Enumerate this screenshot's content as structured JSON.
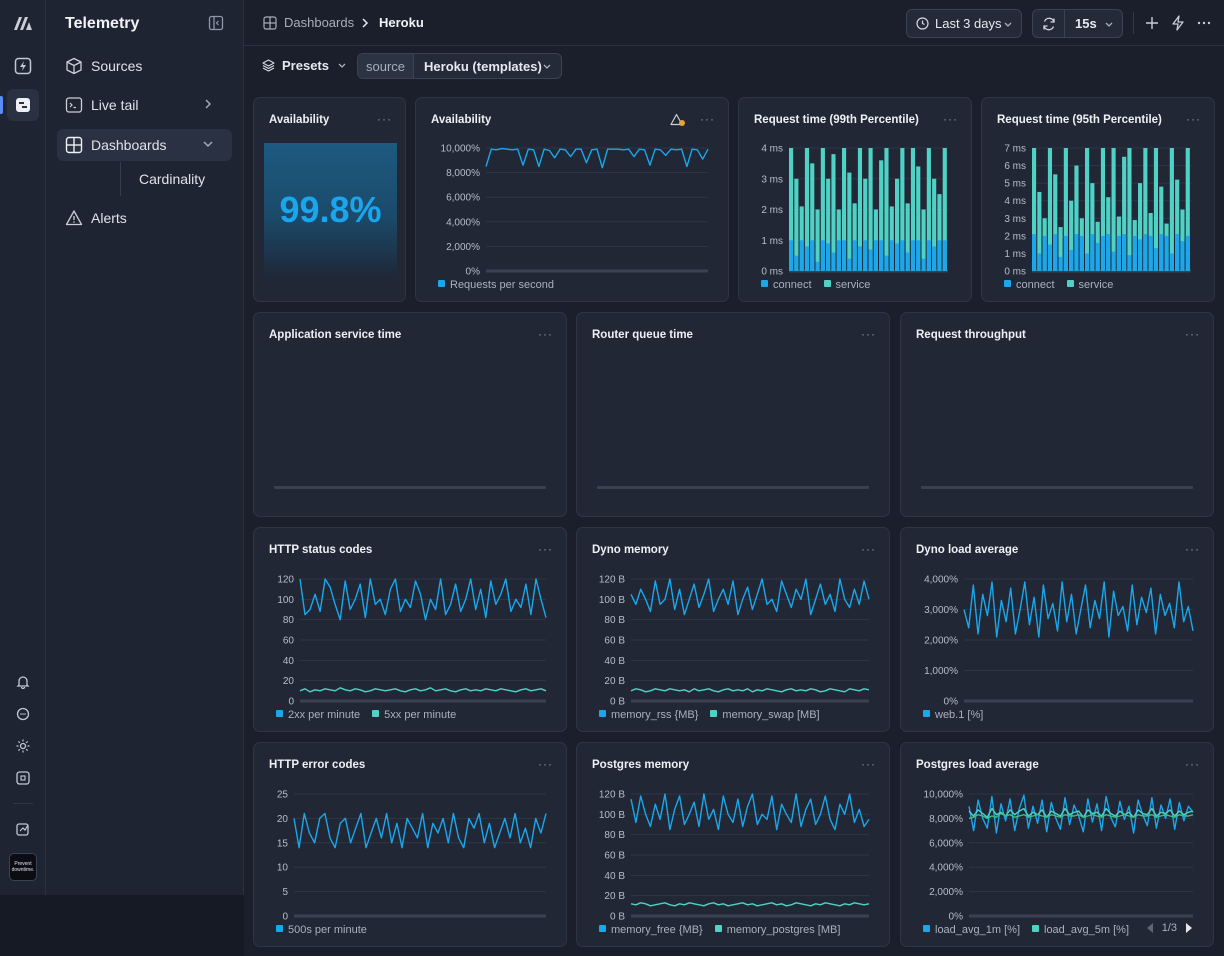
{
  "app": {
    "title": "Telemetry"
  },
  "rail": {
    "icons": [
      "logo-icon",
      "bolt-icon",
      "dashboard-icon",
      "bell-icon",
      "chat-icon",
      "sun-icon",
      "command-icon",
      "import-icon",
      "avatar"
    ],
    "avatar_text": "Prevent downtime."
  },
  "sidebar": {
    "items": [
      {
        "label": "Sources",
        "icon": "cube-icon"
      },
      {
        "label": "Live tail",
        "icon": "terminal-icon"
      },
      {
        "label": "Dashboards",
        "icon": "grid-icon"
      },
      {
        "label": "Cardinality",
        "icon": ""
      },
      {
        "label": "Alerts",
        "icon": "warning-icon"
      }
    ]
  },
  "topbar": {
    "breadcrumb": [
      "Dashboards",
      "Heroku"
    ],
    "time_range": "Last 3 days",
    "refresh": "15s"
  },
  "filters": {
    "presets": "Presets",
    "source_label": "source",
    "source_value": "Heroku (templates)"
  },
  "panels": {
    "availability_stat": {
      "title": "Availability",
      "value": "99.8%"
    },
    "pagination": "1/3"
  },
  "colors": {
    "primary": "#1aa7ec",
    "secondary": "#4fd1c5",
    "tertiary": "#3fbf7f"
  },
  "chart_data": [
    {
      "id": "availability",
      "type": "line",
      "title": "Availability",
      "y_ticks": [
        "10,000%",
        "8,000%",
        "6,000%",
        "4,000%",
        "2,000%",
        "0%"
      ],
      "ylim": [
        0,
        10000
      ],
      "series": [
        {
          "name": "Requests per second",
          "values": [
            8500,
            9900,
            9850,
            9950,
            9900,
            9850,
            9900,
            8600,
            9900,
            9850,
            8500,
            9900,
            9800,
            9200,
            9900,
            9850,
            9300,
            9900,
            9900,
            8800,
            9850,
            9900,
            8400,
            9900,
            9900,
            9900,
            9850,
            9900,
            9300,
            9900,
            9850,
            8600,
            9900,
            9850,
            9400,
            9900,
            9850,
            9900,
            8500,
            9900,
            9850,
            9100,
            9900
          ]
        }
      ]
    },
    {
      "id": "req99",
      "type": "area",
      "title": "Request time (99th Percentile)",
      "y_ticks": [
        "4 ms",
        "3 ms",
        "2 ms",
        "1 ms",
        "0 ms"
      ],
      "ylim": [
        0,
        4
      ],
      "series": [
        {
          "name": "connect",
          "values": [
            1.0,
            0.5,
            1.0,
            0.8,
            1.0,
            0.3,
            1.0,
            0.9,
            0.6,
            1.0,
            1.0,
            0.4,
            1.0,
            0.8,
            1.0,
            0.7,
            1.0,
            1.0,
            0.5,
            1.0,
            0.9,
            1.0,
            0.6,
            1.0,
            1.0,
            0.4,
            1.0,
            0.8,
            1.0,
            1.0
          ]
        },
        {
          "name": "service",
          "values": [
            4.0,
            3.0,
            2.1,
            4.0,
            3.5,
            2.0,
            4.0,
            3.0,
            3.8,
            2.0,
            4.0,
            3.2,
            2.2,
            4.0,
            3.0,
            4.0,
            2.0,
            3.6,
            4.0,
            2.1,
            3.0,
            4.0,
            2.2,
            4.0,
            3.4,
            2.0,
            4.0,
            3.0,
            2.5,
            4.0
          ]
        }
      ]
    },
    {
      "id": "req95",
      "type": "area",
      "title": "Request time (95th Percentile)",
      "y_ticks": [
        "7 ms",
        "6 ms",
        "5 ms",
        "4 ms",
        "3 ms",
        "2 ms",
        "1 ms",
        "0 ms"
      ],
      "ylim": [
        0,
        7
      ],
      "series": [
        {
          "name": "connect",
          "values": [
            2.1,
            1.0,
            2.0,
            1.5,
            2.1,
            0.8,
            2.0,
            1.2,
            2.1,
            2.0,
            1.0,
            2.1,
            1.6,
            2.0,
            2.1,
            1.1,
            2.0,
            2.1,
            0.9,
            2.0,
            1.8,
            2.1,
            2.0,
            1.3,
            2.1,
            2.0,
            1.0,
            2.1,
            1.7,
            2.0
          ]
        },
        {
          "name": "service",
          "values": [
            7.0,
            4.5,
            3.0,
            7.0,
            5.5,
            2.5,
            7.0,
            4.0,
            6.0,
            3.0,
            7.0,
            5.0,
            2.8,
            7.0,
            4.2,
            7.0,
            3.1,
            6.5,
            7.0,
            2.9,
            5.0,
            7.0,
            3.3,
            7.0,
            4.8,
            2.7,
            7.0,
            5.2,
            3.5,
            7.0
          ]
        }
      ]
    },
    {
      "id": "app_service",
      "type": "line",
      "title": "Application service time",
      "series": []
    },
    {
      "id": "router_queue",
      "type": "line",
      "title": "Router queue time",
      "series": []
    },
    {
      "id": "throughput",
      "type": "line",
      "title": "Request throughput",
      "series": []
    },
    {
      "id": "http_status",
      "type": "line",
      "title": "HTTP status codes",
      "y_ticks": [
        "120",
        "100",
        "80",
        "60",
        "40",
        "20",
        "0"
      ],
      "ylim": [
        0,
        120
      ],
      "series": [
        {
          "name": "2xx per minute",
          "values": [
            120,
            85,
            90,
            105,
            88,
            120,
            112,
            95,
            80,
            118,
            90,
            100,
            115,
            82,
            120,
            95,
            100,
            85,
            110,
            120,
            88,
            100,
            92,
            118,
            105,
            80,
            100,
            90,
            120,
            85,
            95,
            115,
            88,
            100,
            120,
            90,
            110,
            82,
            118,
            95,
            105,
            120,
            88,
            100,
            92,
            115,
            85,
            120,
            100,
            82
          ]
        },
        {
          "name": "5xx per minute",
          "values": [
            10,
            12,
            9,
            11,
            10,
            12,
            11,
            10,
            13,
            11,
            10,
            12,
            11,
            9,
            10,
            12,
            11,
            10,
            11,
            12,
            10,
            9,
            11,
            12,
            10,
            11,
            13,
            10,
            11,
            12,
            10,
            9,
            11,
            12,
            10,
            11,
            10,
            12,
            11,
            10,
            12,
            11,
            10,
            9,
            11,
            12,
            10,
            11,
            12,
            10
          ]
        }
      ]
    },
    {
      "id": "dyno_mem",
      "type": "line",
      "title": "Dyno memory",
      "y_ticks": [
        "120 B",
        "100 B",
        "80 B",
        "60 B",
        "40 B",
        "20 B",
        "0 B"
      ],
      "ylim": [
        0,
        120
      ],
      "series": [
        {
          "name": "memory_rss {MB}",
          "values": [
            105,
            95,
            110,
            100,
            88,
            118,
            95,
            100,
            120,
            90,
            110,
            85,
            100,
            115,
            92,
            105,
            120,
            88,
            100,
            110,
            95,
            118,
            85,
            100,
            112,
            90,
            105,
            120,
            95,
            100,
            88,
            118,
            105,
            92,
            110,
            100,
            120,
            85,
            100,
            115,
            95,
            105,
            88,
            120,
            100,
            92,
            110,
            95,
            118,
            100
          ]
        },
        {
          "name": "memory_swap [MB]",
          "values": [
            10,
            12,
            11,
            9,
            10,
            12,
            11,
            10,
            12,
            11,
            10,
            11,
            9,
            12,
            10,
            11,
            12,
            10,
            9,
            11,
            12,
            10,
            11,
            10,
            12,
            9,
            11,
            10,
            12,
            11,
            10,
            9,
            11,
            12,
            10,
            11,
            10,
            12,
            11,
            9,
            10,
            12,
            11,
            10,
            9,
            12,
            11,
            10,
            12,
            11
          ]
        }
      ]
    },
    {
      "id": "dyno_load",
      "type": "line",
      "title": "Dyno load average",
      "y_ticks": [
        "4,000%",
        "3,000%",
        "2,000%",
        "1,000%",
        "0%"
      ],
      "ylim": [
        0,
        4000
      ],
      "series": [
        {
          "name": "web.1 [%]",
          "values": [
            3000,
            2400,
            3800,
            2200,
            3500,
            2800,
            3900,
            2100,
            3300,
            2600,
            3700,
            2200,
            3000,
            3900,
            2500,
            3400,
            2100,
            3800,
            2700,
            3200,
            2300,
            3900,
            2600,
            3500,
            2200,
            3000,
            3800,
            2400,
            3300,
            2700,
            3900,
            2100,
            3600,
            2800,
            3100,
            2300,
            3800,
            2500,
            3400,
            2900,
            3700,
            2200,
            3500,
            2800,
            3200,
            2400,
            3900,
            2600,
            3100,
            2300
          ]
        }
      ]
    },
    {
      "id": "http_err",
      "type": "line",
      "title": "HTTP error codes",
      "y_ticks": [
        "25",
        "20",
        "15",
        "10",
        "5",
        "0"
      ],
      "ylim": [
        0,
        25
      ],
      "series": [
        {
          "name": "500s per minute",
          "values": [
            20,
            14,
            21,
            17,
            15,
            20,
            21,
            16,
            14,
            19,
            20,
            15,
            18,
            21,
            14,
            17,
            20,
            16,
            21,
            15,
            19,
            14,
            20,
            18,
            16,
            21,
            14,
            19,
            17,
            20,
            15,
            21,
            16,
            14,
            20,
            18,
            21,
            15,
            19,
            14,
            17,
            20,
            16,
            21,
            15,
            18,
            14,
            20,
            17,
            21
          ]
        }
      ]
    },
    {
      "id": "pg_mem",
      "type": "line",
      "title": "Postgres memory",
      "y_ticks": [
        "120 B",
        "100 B",
        "80 B",
        "60 B",
        "40 B",
        "20 B",
        "0 B"
      ],
      "ylim": [
        0,
        120
      ],
      "series": [
        {
          "name": "memory_free {MB}",
          "values": [
            115,
            92,
            118,
            100,
            88,
            110,
            95,
            120,
            85,
            105,
            118,
            90,
            100,
            112,
            88,
            120,
            95,
            105,
            85,
            118,
            100,
            92,
            115,
            88,
            108,
            120,
            90,
            100,
            95,
            118,
            85,
            110,
            100,
            92,
            120,
            88,
            105,
            115,
            90,
            100,
            118,
            95,
            85,
            110,
            100,
            120,
            92,
            105,
            88,
            95
          ]
        },
        {
          "name": "memory_postgres [MB]",
          "values": [
            12,
            11,
            13,
            12,
            10,
            11,
            12,
            13,
            11,
            10,
            12,
            11,
            13,
            12,
            11,
            10,
            12,
            13,
            11,
            12,
            10,
            11,
            12,
            13,
            11,
            12,
            10,
            11,
            12,
            13,
            11,
            12,
            10,
            11,
            13,
            12,
            11,
            10,
            12,
            11,
            13,
            12,
            11,
            10,
            12,
            11,
            13,
            12,
            11,
            12
          ]
        }
      ]
    },
    {
      "id": "pg_load",
      "type": "line",
      "title": "Postgres load average",
      "y_ticks": [
        "10,000%",
        "8,000%",
        "6,000%",
        "4,000%",
        "2,000%",
        "0%"
      ],
      "ylim": [
        0,
        10000
      ],
      "series": [
        {
          "name": "load_avg_1m [%]",
          "values": [
            9000,
            7000,
            9500,
            8000,
            7200,
            9800,
            6800,
            9200,
            7800,
            9600,
            7000,
            8800,
            9900,
            7200,
            9000,
            7600,
            9500,
            6900,
            9300,
            8000,
            7100,
            9700,
            7500,
            9100,
            8200,
            6900,
            9600,
            7700,
            9200,
            7000,
            9800,
            8100,
            7300,
            9400,
            7900,
            9000,
            6800,
            9500,
            8300,
            7400,
            9700,
            7200,
            9100,
            8000,
            9600,
            7100,
            9300,
            7800,
            9000,
            8500
          ]
        },
        {
          "name": "load_avg_5m [%]",
          "values": [
            8600,
            8200,
            8700,
            8400,
            8100,
            8800,
            8300,
            8500,
            8200,
            8700,
            8300,
            8600,
            8800,
            8200,
            8500,
            8300,
            8700,
            8100,
            8600,
            8400,
            8200,
            8800,
            8300,
            8500,
            8600,
            8100,
            8700,
            8400,
            8500,
            8200,
            8800,
            8400,
            8200,
            8600,
            8300,
            8500,
            8100,
            8700,
            8400,
            8300,
            8800,
            8200,
            8500,
            8400,
            8700,
            8200,
            8600,
            8300,
            8500,
            8600
          ]
        },
        {
          "name": "",
          "values": [
            8000,
            8100,
            8300,
            8200,
            8000,
            8200,
            8100,
            8400,
            8200,
            8300,
            8100,
            8200,
            8300,
            8100,
            8200,
            8300,
            8200,
            8100,
            8300,
            8200,
            8100,
            8300,
            8200,
            8200,
            8300,
            8100,
            8200,
            8300,
            8200,
            8100,
            8300,
            8200,
            8100,
            8200,
            8300,
            8200,
            8100,
            8300,
            8200,
            8200,
            8300,
            8100,
            8200,
            8300,
            8200,
            8100,
            8300,
            8200,
            8200,
            8300
          ]
        }
      ]
    }
  ]
}
